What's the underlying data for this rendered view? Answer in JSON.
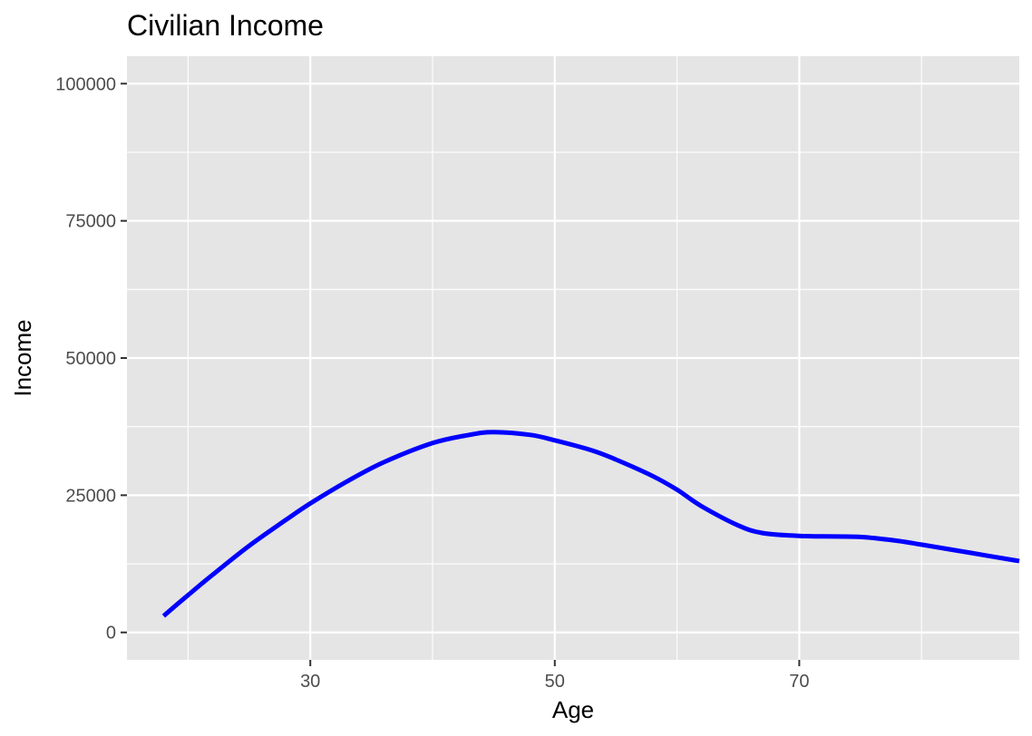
{
  "chart_data": {
    "type": "line",
    "title": "Civilian Income",
    "xlabel": "Age",
    "ylabel": "Income",
    "xlim": [
      15,
      88
    ],
    "ylim": [
      -5000,
      105000
    ],
    "x_ticks": [
      30,
      50,
      70
    ],
    "x_minor": [
      20,
      40,
      60,
      80
    ],
    "y_ticks": [
      0,
      25000,
      50000,
      75000,
      100000
    ],
    "y_minor": [
      12500,
      37500,
      62500,
      87500
    ],
    "grid": true,
    "legend": "none",
    "series": [
      {
        "color": "#0000ff",
        "x": [
          18,
          20,
          22,
          25,
          28,
          30,
          33,
          36,
          40,
          43,
          45,
          48,
          50,
          53,
          55,
          58,
          60,
          62,
          65,
          67,
          70,
          72,
          75,
          78,
          80,
          84,
          88
        ],
        "y": [
          3000,
          6800,
          10500,
          15800,
          20500,
          23500,
          27500,
          31000,
          34500,
          36000,
          36500,
          36000,
          35000,
          33200,
          31500,
          28500,
          26000,
          23000,
          19500,
          18100,
          17600,
          17500,
          17400,
          16700,
          16000,
          14500,
          13000
        ]
      }
    ]
  }
}
